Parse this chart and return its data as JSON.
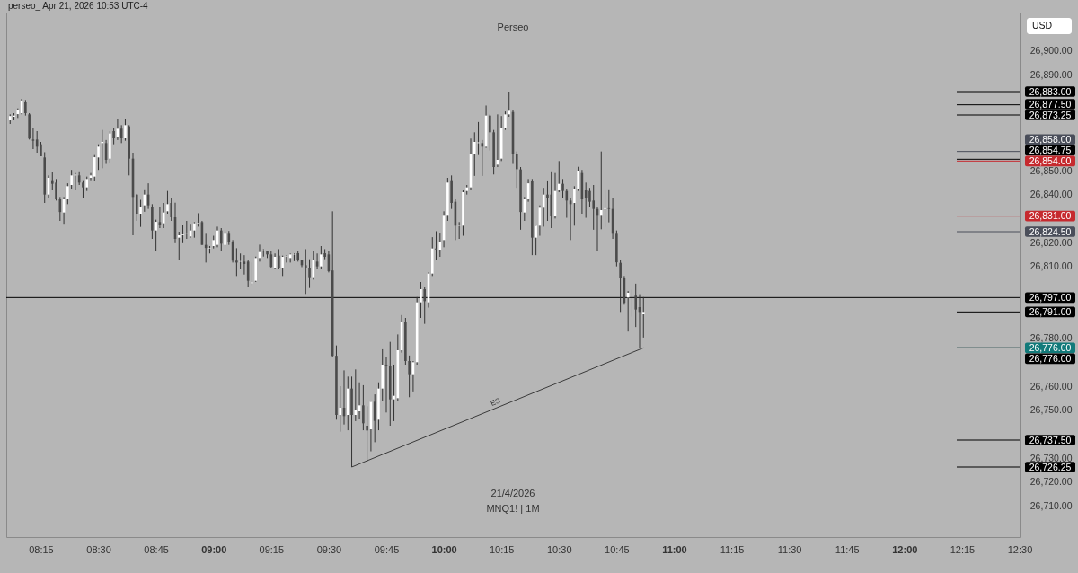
{
  "chart_data": {
    "type": "candlestick",
    "title": "Perseo",
    "subtitle": "perseo_ Apr 21, 2026 10:53 UTC-4",
    "ylabel": "USD",
    "annotations": [
      "21/4/2026",
      "MNQ1! | 1M"
    ],
    "grid": false,
    "xlim": [
      "2026-04-21T08:06",
      "2026-04-21T12:30"
    ],
    "ylim": [
      26697,
      26916
    ],
    "xticks": [
      {
        "value": "2026-04-21T08:15",
        "label": "08:15"
      },
      {
        "value": "2026-04-21T08:30",
        "label": "08:30"
      },
      {
        "value": "2026-04-21T08:45",
        "label": "08:45"
      },
      {
        "value": "2026-04-21T09:00",
        "label": "09:00"
      },
      {
        "value": "2026-04-21T09:15",
        "label": "09:15"
      },
      {
        "value": "2026-04-21T09:30",
        "label": "09:30"
      },
      {
        "value": "2026-04-21T09:45",
        "label": "09:45"
      },
      {
        "value": "2026-04-21T10:00",
        "label": "10:00"
      },
      {
        "value": "2026-04-21T10:15",
        "label": "10:15"
      },
      {
        "value": "2026-04-21T10:30",
        "label": "10:30"
      },
      {
        "value": "2026-04-21T10:45",
        "label": "10:45"
      },
      {
        "value": "2026-04-21T11:00",
        "label": "11:00"
      },
      {
        "value": "2026-04-21T11:15",
        "label": "11:15"
      },
      {
        "value": "2026-04-21T11:30",
        "label": "11:30"
      },
      {
        "value": "2026-04-21T11:45",
        "label": "11:45"
      },
      {
        "value": "2026-04-21T12:00",
        "label": "12:00"
      },
      {
        "value": "2026-04-21T12:15",
        "label": "12:15"
      },
      {
        "value": "2026-04-21T12:30",
        "label": "12:30"
      }
    ],
    "yticks": [
      {
        "value": 26710,
        "label": "26,710.00"
      },
      {
        "value": 26720,
        "label": "26,720.00"
      },
      {
        "value": 26730,
        "label": "26,730.00"
      },
      {
        "value": 26750,
        "label": "26,750.00"
      },
      {
        "value": 26760,
        "label": "26,760.00"
      },
      {
        "value": 26780,
        "label": "26,780.00"
      },
      {
        "value": 26810,
        "label": "26,810.00"
      },
      {
        "value": 26820,
        "label": "26,820.00"
      },
      {
        "value": 26840,
        "label": "26,840.00"
      },
      {
        "value": 26850,
        "label": "26,850.00"
      },
      {
        "value": 26890,
        "label": "26,890.00"
      },
      {
        "value": 26900,
        "label": "26,900.00"
      }
    ],
    "ref_lines": [
      {
        "axis": "y",
        "value": 26883,
        "label": "26,883.00",
        "color": "#000000"
      },
      {
        "axis": "y",
        "value": 26877.5,
        "label": "26,877.50",
        "color": "#000000"
      },
      {
        "axis": "y",
        "value": 26873.25,
        "label": "26,873.25",
        "color": "#000000"
      },
      {
        "axis": "y",
        "value": 26858,
        "label": "26,858.00",
        "color": "#4a4e5a"
      },
      {
        "axis": "y",
        "value": 26854.75,
        "label": "26,854.75",
        "color": "#000000"
      },
      {
        "axis": "y",
        "value": 26854,
        "label": "26,854.00",
        "color": "#c62a2f"
      },
      {
        "axis": "y",
        "value": 26831,
        "label": "26,831.00",
        "color": "#c62a2f"
      },
      {
        "axis": "y",
        "value": 26824.5,
        "label": "26,824.50",
        "color": "#4a4e5a"
      },
      {
        "axis": "y",
        "value": 26797,
        "label": "26,797.00",
        "color": "#000000",
        "line_style": "solid"
      },
      {
        "axis": "y",
        "value": 26791,
        "label": "26,791.00",
        "color": "#000000"
      },
      {
        "axis": "y",
        "value": 26776,
        "label": "26,776.00",
        "color": "#127a7a"
      },
      {
        "axis": "y",
        "value": 26776,
        "label": "26,776.00",
        "color": "#000000"
      },
      {
        "axis": "y",
        "value": 26737.5,
        "label": "26,737.50",
        "color": "#000000"
      },
      {
        "axis": "y",
        "value": 26726.25,
        "label": "26,726.25",
        "color": "#000000"
      }
    ],
    "series": [
      {
        "name": "ES",
        "type": "line",
        "color": "#3a3a3a",
        "x": [
          "2026-04-21T09:36",
          "2026-04-21T10:52"
        ],
        "values": [
          26726.25,
          26776
        ]
      }
    ],
    "x": [
      "2026-04-21T08:07",
      "2026-04-21T08:08",
      "2026-04-21T08:09",
      "2026-04-21T08:10",
      "2026-04-21T08:11",
      "2026-04-21T08:12",
      "2026-04-21T08:13",
      "2026-04-21T08:14",
      "2026-04-21T08:15",
      "2026-04-21T08:16",
      "2026-04-21T08:17",
      "2026-04-21T08:18",
      "2026-04-21T08:19",
      "2026-04-21T08:20",
      "2026-04-21T08:21",
      "2026-04-21T08:22",
      "2026-04-21T08:23",
      "2026-04-21T08:24",
      "2026-04-21T08:25",
      "2026-04-21T08:26",
      "2026-04-21T08:27",
      "2026-04-21T08:28",
      "2026-04-21T08:29",
      "2026-04-21T08:30",
      "2026-04-21T08:31",
      "2026-04-21T08:32",
      "2026-04-21T08:33",
      "2026-04-21T08:34",
      "2026-04-21T08:35",
      "2026-04-21T08:36",
      "2026-04-21T08:37",
      "2026-04-21T08:38",
      "2026-04-21T08:39",
      "2026-04-21T08:40",
      "2026-04-21T08:41",
      "2026-04-21T08:42",
      "2026-04-21T08:43",
      "2026-04-21T08:44",
      "2026-04-21T08:45",
      "2026-04-21T08:46",
      "2026-04-21T08:47",
      "2026-04-21T08:48",
      "2026-04-21T08:49",
      "2026-04-21T08:50",
      "2026-04-21T08:51",
      "2026-04-21T08:52",
      "2026-04-21T08:53",
      "2026-04-21T08:54",
      "2026-04-21T08:55",
      "2026-04-21T08:56",
      "2026-04-21T08:57",
      "2026-04-21T08:58",
      "2026-04-21T08:59",
      "2026-04-21T09:00",
      "2026-04-21T09:01",
      "2026-04-21T09:02",
      "2026-04-21T09:03",
      "2026-04-21T09:04",
      "2026-04-21T09:05",
      "2026-04-21T09:06",
      "2026-04-21T09:07",
      "2026-04-21T09:08",
      "2026-04-21T09:09",
      "2026-04-21T09:10",
      "2026-04-21T09:11",
      "2026-04-21T09:12",
      "2026-04-21T09:13",
      "2026-04-21T09:14",
      "2026-04-21T09:15",
      "2026-04-21T09:16",
      "2026-04-21T09:17",
      "2026-04-21T09:18",
      "2026-04-21T09:19",
      "2026-04-21T09:20",
      "2026-04-21T09:21",
      "2026-04-21T09:22",
      "2026-04-21T09:23",
      "2026-04-21T09:24",
      "2026-04-21T09:25",
      "2026-04-21T09:26",
      "2026-04-21T09:27",
      "2026-04-21T09:28",
      "2026-04-21T09:29",
      "2026-04-21T09:30",
      "2026-04-21T09:31",
      "2026-04-21T09:32",
      "2026-04-21T09:33",
      "2026-04-21T09:34",
      "2026-04-21T09:35",
      "2026-04-21T09:36",
      "2026-04-21T09:37",
      "2026-04-21T09:38",
      "2026-04-21T09:39",
      "2026-04-21T09:40",
      "2026-04-21T09:41",
      "2026-04-21T09:42",
      "2026-04-21T09:43",
      "2026-04-21T09:44",
      "2026-04-21T09:45",
      "2026-04-21T09:46",
      "2026-04-21T09:47",
      "2026-04-21T09:48",
      "2026-04-21T09:49",
      "2026-04-21T09:50",
      "2026-04-21T09:51",
      "2026-04-21T09:52",
      "2026-04-21T09:53",
      "2026-04-21T09:54",
      "2026-04-21T09:55",
      "2026-04-21T09:56",
      "2026-04-21T09:57",
      "2026-04-21T09:58",
      "2026-04-21T09:59",
      "2026-04-21T10:00",
      "2026-04-21T10:01",
      "2026-04-21T10:02",
      "2026-04-21T10:03",
      "2026-04-21T10:04",
      "2026-04-21T10:05",
      "2026-04-21T10:06",
      "2026-04-21T10:07",
      "2026-04-21T10:08",
      "2026-04-21T10:09",
      "2026-04-21T10:10",
      "2026-04-21T10:11",
      "2026-04-21T10:12",
      "2026-04-21T10:13",
      "2026-04-21T10:14",
      "2026-04-21T10:15",
      "2026-04-21T10:16",
      "2026-04-21T10:17",
      "2026-04-21T10:18",
      "2026-04-21T10:19",
      "2026-04-21T10:20",
      "2026-04-21T10:21",
      "2026-04-21T10:22",
      "2026-04-21T10:23",
      "2026-04-21T10:24",
      "2026-04-21T10:25",
      "2026-04-21T10:26",
      "2026-04-21T10:27",
      "2026-04-21T10:28",
      "2026-04-21T10:29",
      "2026-04-21T10:30",
      "2026-04-21T10:31",
      "2026-04-21T10:32",
      "2026-04-21T10:33",
      "2026-04-21T10:34",
      "2026-04-21T10:35",
      "2026-04-21T10:36",
      "2026-04-21T10:37",
      "2026-04-21T10:38",
      "2026-04-21T10:39",
      "2026-04-21T10:40",
      "2026-04-21T10:41",
      "2026-04-21T10:42",
      "2026-04-21T10:43",
      "2026-04-21T10:44",
      "2026-04-21T10:45",
      "2026-04-21T10:46",
      "2026-04-21T10:47",
      "2026-04-21T10:48",
      "2026-04-21T10:49",
      "2026-04-21T10:50",
      "2026-04-21T10:51",
      "2026-04-21T10:52"
    ],
    "ohlc": [
      [
        26871,
        26873.5,
        26869.5,
        26872.8
      ],
      [
        26872.5,
        26874,
        26871,
        26873
      ],
      [
        26873.6,
        26876,
        26872,
        26875.5
      ],
      [
        26874,
        26880,
        26873.5,
        26879
      ],
      [
        26878.5,
        26879.5,
        26873,
        26874
      ],
      [
        26873.5,
        26874,
        26863,
        26863.4
      ],
      [
        26863,
        26868,
        26859,
        26862.5
      ],
      [
        26863,
        26866.5,
        26857.5,
        26860
      ],
      [
        26861,
        26862,
        26856,
        26856
      ],
      [
        26855.5,
        26857.7,
        26836.5,
        26840
      ],
      [
        26840,
        26848,
        26838.5,
        26847
      ],
      [
        26846,
        26849.5,
        26842,
        26844.5
      ],
      [
        26845,
        26846.5,
        26837.5,
        26838
      ],
      [
        26838,
        26839,
        26829,
        26832.7
      ],
      [
        26832.5,
        26839,
        26827.8,
        26838
      ],
      [
        26838,
        26844.7,
        26836,
        26843.5
      ],
      [
        26844,
        26850.3,
        26842.5,
        26848
      ],
      [
        26848,
        26849,
        26842,
        26848.3
      ],
      [
        26848,
        26849.7,
        26844,
        26845
      ],
      [
        26845,
        26846,
        26838.5,
        26843
      ],
      [
        26843,
        26847.5,
        26841.5,
        26846.5
      ],
      [
        26847,
        26849,
        26846,
        26848
      ],
      [
        26847.5,
        26856.5,
        26845.5,
        26855.6
      ],
      [
        26855.5,
        26861,
        26850.3,
        26860
      ],
      [
        26861.5,
        26867,
        26851,
        26862
      ],
      [
        26861.5,
        26862.8,
        26852.8,
        26854.5
      ],
      [
        26855,
        26866.5,
        26853.4,
        26865.5
      ],
      [
        26866.5,
        26867.8,
        26861,
        26863.5
      ],
      [
        26864,
        26871.5,
        26862.8,
        26867.5
      ],
      [
        26867.5,
        26869,
        26861.5,
        26863.5
      ],
      [
        26863.5,
        26871.5,
        26862.5,
        26869
      ],
      [
        26868.5,
        26869,
        26848,
        26855
      ],
      [
        26855,
        26857.5,
        26823,
        26839
      ],
      [
        26840,
        26840.3,
        26829,
        26832
      ],
      [
        26832,
        26837.8,
        26826.5,
        26835
      ],
      [
        26835.5,
        26842.2,
        26832.8,
        26840
      ],
      [
        26840,
        26844.7,
        26834,
        26835.5
      ],
      [
        26835,
        26836,
        26821.5,
        26825
      ],
      [
        26825,
        26829.5,
        26816.5,
        26828.6
      ],
      [
        26828.5,
        26835,
        26826,
        26827.5
      ],
      [
        26828,
        26836.5,
        26826,
        26832.5
      ],
      [
        26833,
        26841.5,
        26832,
        26836
      ],
      [
        26836.5,
        26838.5,
        26829,
        26830.5
      ],
      [
        26830.5,
        26836.6,
        26819.7,
        26821.5
      ],
      [
        26822,
        26824.5,
        26812.8,
        26823
      ],
      [
        26823,
        26827.2,
        26819.7,
        26823.3
      ],
      [
        26823.5,
        26829,
        26821.5,
        26823.8
      ],
      [
        26822.5,
        26827.8,
        26822,
        26825
      ],
      [
        26825,
        26828.5,
        26822,
        26828
      ],
      [
        26828,
        26832.2,
        26826.6,
        26828.2
      ],
      [
        26828.5,
        26829,
        26819,
        26819
      ],
      [
        26819,
        26824,
        26811.6,
        26817.7
      ],
      [
        26817.5,
        26818.5,
        26815.4,
        26817.7
      ],
      [
        26818.5,
        26822.8,
        26817.5,
        26821
      ],
      [
        26819,
        26826.6,
        26818,
        26825
      ],
      [
        26825,
        26826,
        26816.6,
        26819.5
      ],
      [
        26819,
        26824.6,
        26818.5,
        26824
      ],
      [
        26824,
        26824.8,
        26819,
        26820
      ],
      [
        26820,
        26821,
        26811.6,
        26812.4
      ],
      [
        26812.4,
        26817.6,
        26806,
        26811.6
      ],
      [
        26812,
        26815.4,
        26809,
        26812.2
      ],
      [
        26812,
        26814.7,
        26806.6,
        26811
      ],
      [
        26812,
        26812.5,
        26801.6,
        26804
      ],
      [
        26803,
        26811.6,
        26802.2,
        26803.3
      ],
      [
        26804,
        26814.1,
        26803.5,
        26813.5
      ],
      [
        26813.5,
        26819.1,
        26812,
        26816
      ],
      [
        26816.5,
        26817.2,
        26814.1,
        26816.7
      ],
      [
        26816.5,
        26816.6,
        26813.5,
        26815
      ],
      [
        26815,
        26816.6,
        26809.5,
        26809.8
      ],
      [
        26809.5,
        26815.4,
        26809,
        26814
      ],
      [
        26814.5,
        26817.2,
        26809,
        26809.5
      ],
      [
        26809.5,
        26814.5,
        26806,
        26814
      ],
      [
        26814,
        26814.6,
        26811.6,
        26814.2
      ],
      [
        26813.5,
        26815.4,
        26811.6,
        26815
      ],
      [
        26815,
        26815.5,
        26812.2,
        26815.2
      ],
      [
        26815.5,
        26816.6,
        26812,
        26812.5
      ],
      [
        26812.5,
        26812.8,
        26809.7,
        26810.5
      ],
      [
        26810.5,
        26817.2,
        26798.5,
        26809.5
      ],
      [
        26809.5,
        26813,
        26801,
        26805.5
      ],
      [
        26805.5,
        26816.6,
        26804.5,
        26812.8
      ],
      [
        26812,
        26815.4,
        26809,
        26810
      ],
      [
        26810,
        26818.5,
        26809,
        26815
      ],
      [
        26815.5,
        26817.2,
        26813,
        26814
      ],
      [
        26815,
        26816.6,
        26807.5,
        26808
      ],
      [
        26808.3,
        26833,
        26772,
        26772.7
      ],
      [
        26772.7,
        26777,
        26746,
        26748
      ],
      [
        26748,
        26760,
        26741,
        26751
      ],
      [
        26751,
        26766.6,
        26744,
        26747.5
      ],
      [
        26748,
        26764,
        26741.6,
        26759
      ],
      [
        26759,
        26764,
        26726.25,
        26748
      ],
      [
        26748,
        26767,
        26745.4,
        26750
      ],
      [
        26749.5,
        26761.6,
        26746.5,
        26752
      ],
      [
        26752,
        26760.4,
        26741.6,
        26744.5
      ],
      [
        26743.5,
        26751.6,
        26728.5,
        26741.5
      ],
      [
        26742,
        26753.8,
        26732.8,
        26753.5
      ],
      [
        26753.5,
        26756.6,
        26736.6,
        26745.5
      ],
      [
        26746,
        26761.6,
        26741.6,
        26759
      ],
      [
        26759,
        26775.4,
        26754,
        26769
      ],
      [
        26769,
        26772.2,
        26749,
        26768.7
      ],
      [
        26768.5,
        26778.5,
        26743.5,
        26754.5
      ],
      [
        26754.5,
        26769,
        26745.4,
        26756
      ],
      [
        26755,
        26781.6,
        26754,
        26775
      ],
      [
        26775,
        26789.7,
        26774,
        26787
      ],
      [
        26787,
        26788.5,
        26769,
        26770.5
      ],
      [
        26770.5,
        26772.8,
        26755.4,
        26765
      ],
      [
        26765,
        26770.5,
        26757.8,
        26770
      ],
      [
        26770,
        26797.2,
        26769,
        26795
      ],
      [
        26795,
        26803.5,
        26788.5,
        26800.5
      ],
      [
        26800.5,
        26801.5,
        26786,
        26795.5
      ],
      [
        26795,
        26807.5,
        26792.8,
        26807
      ],
      [
        26807,
        26822.2,
        26806,
        26817.5
      ],
      [
        26817.5,
        26824.7,
        26812.8,
        26817
      ],
      [
        26817,
        26824.1,
        26814,
        26820
      ],
      [
        26821,
        26833,
        26818,
        26831.5
      ],
      [
        26831.5,
        26847,
        26829,
        26845
      ],
      [
        26846,
        26848,
        26834,
        26836.5
      ],
      [
        26837,
        26838,
        26821,
        26827
      ],
      [
        26827,
        26828.5,
        26821.5,
        26827.3
      ],
      [
        26827,
        26842,
        26822.8,
        26841
      ],
      [
        26841.5,
        26844,
        26840,
        26843
      ],
      [
        26843,
        26863.4,
        26842,
        26857
      ],
      [
        26857,
        26866,
        26847.8,
        26862
      ],
      [
        26861.5,
        26870.3,
        26856.5,
        26861.8
      ],
      [
        26861.5,
        26862.8,
        26847.8,
        26860
      ],
      [
        26860,
        26877.2,
        26859.5,
        26873
      ],
      [
        26873,
        26873.5,
        26858.4,
        26866
      ],
      [
        26866,
        26867,
        26848.4,
        26851.5
      ],
      [
        26852.5,
        26873.5,
        26851.5,
        26854.5
      ],
      [
        26855,
        26872.8,
        26854,
        26868
      ],
      [
        26868,
        26874.7,
        26867,
        26873.5
      ],
      [
        26873.5,
        26883,
        26872.5,
        26875
      ],
      [
        26874.5,
        26875.5,
        26852.8,
        26857
      ],
      [
        26857,
        26858,
        26842.8,
        26850.6
      ],
      [
        26850.5,
        26851.5,
        26825.3,
        26832.7
      ],
      [
        26832.5,
        26839,
        26829,
        26838
      ],
      [
        26838,
        26846.5,
        26837,
        26844.7
      ],
      [
        26845.5,
        26846.5,
        26814.7,
        26822
      ],
      [
        26822,
        26827.5,
        26814.7,
        26827
      ],
      [
        26827,
        26835.5,
        26822.8,
        26834.5
      ],
      [
        26834.5,
        26842.8,
        26826.6,
        26840
      ],
      [
        26840,
        26845.9,
        26829,
        26838.5
      ],
      [
        26840,
        26849.7,
        26826,
        26831
      ],
      [
        26831,
        26849,
        26830,
        26841.5
      ],
      [
        26842,
        26854,
        26841,
        26844.5
      ],
      [
        26844.5,
        26846.5,
        26838.4,
        26841.5
      ],
      [
        26841.5,
        26842.5,
        26830.3,
        26837.5
      ],
      [
        26837.5,
        26838.5,
        26821,
        26836
      ],
      [
        26836.5,
        26843.5,
        26827,
        26842.5
      ],
      [
        26842.5,
        26851.6,
        26841.5,
        26850
      ],
      [
        26849,
        26850.3,
        26832,
        26838
      ],
      [
        26842,
        26845,
        26830.3,
        26838.5
      ],
      [
        26841.5,
        26842.8,
        26835,
        26837
      ],
      [
        26837.5,
        26844,
        26825.3,
        26834
      ],
      [
        26834,
        26835,
        26816.5,
        26831.5
      ],
      [
        26831.5,
        26858,
        26825.5,
        26833.5
      ],
      [
        26834,
        26842.2,
        26826.6,
        26834.3
      ],
      [
        26834.3,
        26842.2,
        26828.4,
        26834
      ],
      [
        26834,
        26838.4,
        26821.5,
        26824
      ],
      [
        26824,
        26825,
        26810,
        26811.7
      ],
      [
        26811.5,
        26812.5,
        26791,
        26805.3
      ],
      [
        26805.3,
        26806,
        26794,
        26794.8
      ],
      [
        26797,
        26799.7,
        26782.8,
        26799
      ],
      [
        26798,
        26800.3,
        26789,
        26798.2
      ],
      [
        26797.8,
        26802.8,
        26784.7,
        26792
      ],
      [
        26793,
        26798.4,
        26776,
        26791
      ],
      [
        26790,
        26797.2,
        26780.3,
        26791
      ]
    ]
  }
}
